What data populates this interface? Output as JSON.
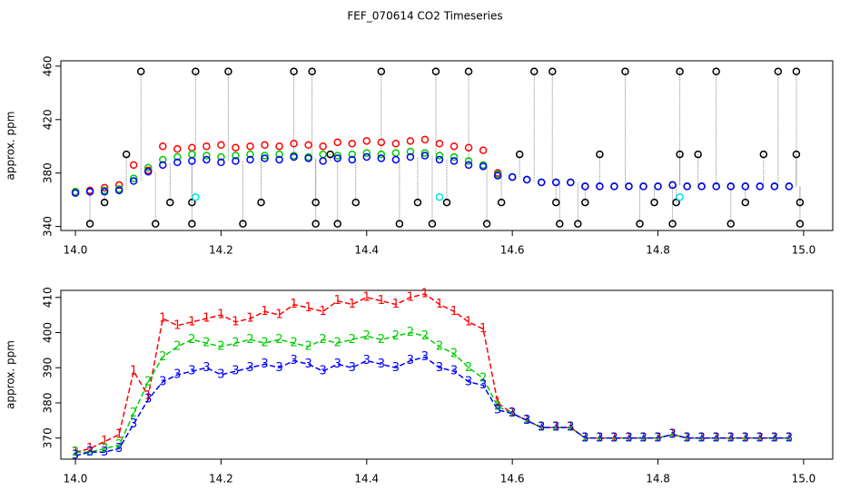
{
  "chart_data": [
    {
      "type": "scatter",
      "title": "FEF_070614  CO2 Timeseries",
      "y_label": "approx. ppm",
      "xlim": [
        13.98,
        15.04
      ],
      "ylim": [
        337,
        464
      ],
      "xticks": [
        {
          "value": 14.0,
          "label": "14.0"
        },
        {
          "value": 14.2,
          "label": "14.2"
        },
        {
          "value": 14.4,
          "label": "14.4"
        },
        {
          "value": 14.6,
          "label": "14.6"
        },
        {
          "value": 14.8,
          "label": "14.8"
        },
        {
          "value": 15.0,
          "label": "15.0"
        }
      ],
      "yticks": [
        340,
        380,
        420,
        460
      ],
      "x": [
        14.0,
        14.02,
        14.04,
        14.06,
        14.08,
        14.1,
        14.12,
        14.14,
        14.16,
        14.18,
        14.2,
        14.22,
        14.24,
        14.26,
        14.28,
        14.3,
        14.32,
        14.34,
        14.36,
        14.38,
        14.4,
        14.42,
        14.44,
        14.46,
        14.48,
        14.5,
        14.52,
        14.54,
        14.56,
        14.58,
        14.6,
        14.62,
        14.64,
        14.66,
        14.68,
        14.7,
        14.72,
        14.74,
        14.76,
        14.78,
        14.8,
        14.82,
        14.84,
        14.86,
        14.88,
        14.9,
        14.92,
        14.94,
        14.96,
        14.98
      ],
      "series": [
        {
          "color": "#ff0000",
          "values": [
            366,
            367,
            369,
            371,
            386,
            382,
            400,
            398,
            399,
            400,
            401,
            399,
            400,
            401,
            400,
            402,
            401,
            400,
            403,
            402,
            404,
            403,
            402,
            404,
            405,
            402,
            400,
            399,
            397,
            380,
            377,
            375,
            373,
            373,
            373,
            370,
            370,
            370,
            370,
            370,
            370,
            371,
            370,
            370,
            370,
            370,
            370,
            370,
            370,
            370
          ]
        },
        {
          "color": "#00cd00",
          "values": [
            366,
            366,
            367,
            368,
            376,
            384,
            390,
            392,
            394,
            393,
            392,
            393,
            394,
            393,
            394,
            393,
            392,
            394,
            393,
            394,
            395,
            394,
            395,
            396,
            395,
            393,
            392,
            389,
            386,
            379,
            377,
            375,
            373,
            373,
            373,
            370,
            370,
            370,
            370,
            370,
            370,
            371,
            370,
            370,
            370,
            370,
            370,
            370,
            370,
            370
          ]
        },
        {
          "color": "#0000ff",
          "values": [
            365,
            366,
            366,
            367,
            374,
            381,
            386,
            388,
            389,
            390,
            388,
            389,
            390,
            391,
            390,
            392,
            391,
            389,
            391,
            390,
            392,
            391,
            390,
            392,
            393,
            390,
            389,
            386,
            385,
            378,
            377,
            375,
            373,
            373,
            373,
            370,
            370,
            370,
            370,
            370,
            370,
            371,
            370,
            370,
            370,
            370,
            370,
            370,
            370,
            370
          ]
        },
        {
          "color": "#000000",
          "x": [
            14.02,
            14.04,
            14.07,
            14.09,
            14.11,
            14.13,
            14.16,
            14.16,
            14.165,
            14.21,
            14.23,
            14.255,
            14.3,
            14.325,
            14.33,
            14.33,
            14.35,
            14.36,
            14.385,
            14.42,
            14.445,
            14.47,
            14.49,
            14.495,
            14.51,
            14.54,
            14.565,
            14.585,
            14.61,
            14.63,
            14.655,
            14.66,
            14.665,
            14.69,
            14.7,
            14.72,
            14.755,
            14.775,
            14.795,
            14.82,
            14.825,
            14.83,
            14.83,
            14.855,
            14.88,
            14.9,
            14.92,
            14.945,
            14.965,
            14.99,
            14.99,
            14.995,
            14.995
          ],
          "values": [
            342,
            358,
            394,
            456,
            342,
            358,
            342,
            358,
            456,
            456,
            342,
            358,
            456,
            456,
            358,
            342,
            394,
            342,
            358,
            456,
            342,
            358,
            342,
            456,
            358,
            456,
            342,
            358,
            394,
            456,
            456,
            358,
            342,
            342,
            358,
            394,
            456,
            342,
            358,
            342,
            358,
            394,
            456,
            394,
            456,
            342,
            358,
            394,
            456,
            456,
            394,
            358,
            342
          ]
        },
        {
          "color": "#00e5ee",
          "x": [
            14.165,
            14.5,
            14.83
          ],
          "values": [
            362,
            362,
            362
          ]
        }
      ]
    },
    {
      "type": "line",
      "y_label": "approx. ppm",
      "xlim": [
        13.98,
        15.04
      ],
      "ylim": [
        364,
        412
      ],
      "xticks": [
        {
          "value": 14.0,
          "label": "14.0"
        },
        {
          "value": 14.2,
          "label": "14.2"
        },
        {
          "value": 14.4,
          "label": "14.4"
        },
        {
          "value": 14.6,
          "label": "14.6"
        },
        {
          "value": 14.8,
          "label": "14.8"
        },
        {
          "value": 15.0,
          "label": "15.0"
        }
      ],
      "yticks": [
        370,
        380,
        390,
        400,
        410
      ],
      "x": [
        14.0,
        14.02,
        14.04,
        14.06,
        14.08,
        14.1,
        14.12,
        14.14,
        14.16,
        14.18,
        14.2,
        14.22,
        14.24,
        14.26,
        14.28,
        14.3,
        14.32,
        14.34,
        14.36,
        14.38,
        14.4,
        14.42,
        14.44,
        14.46,
        14.48,
        14.5,
        14.52,
        14.54,
        14.56,
        14.58,
        14.6,
        14.62,
        14.64,
        14.66,
        14.68,
        14.7,
        14.72,
        14.74,
        14.76,
        14.78,
        14.8,
        14.82,
        14.84,
        14.86,
        14.88,
        14.9,
        14.92,
        14.94,
        14.96,
        14.98
      ],
      "series": [
        {
          "color": "#ff0000",
          "marker": "1",
          "values": [
            366,
            367,
            369,
            371,
            389,
            382,
            404,
            402,
            403,
            404,
            405,
            403,
            404,
            406,
            405,
            408,
            407,
            406,
            409,
            408,
            410,
            409,
            408,
            410,
            411,
            408,
            406,
            403,
            401,
            380,
            377,
            375,
            373,
            373,
            373,
            370,
            370,
            370,
            370,
            370,
            370,
            371,
            370,
            370,
            370,
            370,
            370,
            370,
            370,
            370
          ]
        },
        {
          "color": "#00cd00",
          "marker": "2",
          "values": [
            366,
            366,
            367,
            368,
            377,
            386,
            393,
            396,
            398,
            397,
            396,
            397,
            398,
            397,
            398,
            397,
            396,
            398,
            397,
            398,
            399,
            398,
            399,
            400,
            399,
            396,
            394,
            390,
            387,
            379,
            377,
            375,
            373,
            373,
            373,
            370,
            370,
            370,
            370,
            370,
            370,
            371,
            370,
            370,
            370,
            370,
            370,
            370,
            370,
            370
          ]
        },
        {
          "color": "#0000ff",
          "marker": "3",
          "values": [
            365,
            366,
            366,
            367,
            374,
            381,
            386,
            388,
            389,
            390,
            388,
            389,
            390,
            391,
            390,
            392,
            391,
            389,
            391,
            390,
            392,
            391,
            390,
            392,
            393,
            390,
            389,
            386,
            385,
            378,
            377,
            375,
            373,
            373,
            373,
            370,
            370,
            370,
            370,
            370,
            370,
            371,
            370,
            370,
            370,
            370,
            370,
            370,
            370,
            370
          ]
        }
      ]
    }
  ]
}
